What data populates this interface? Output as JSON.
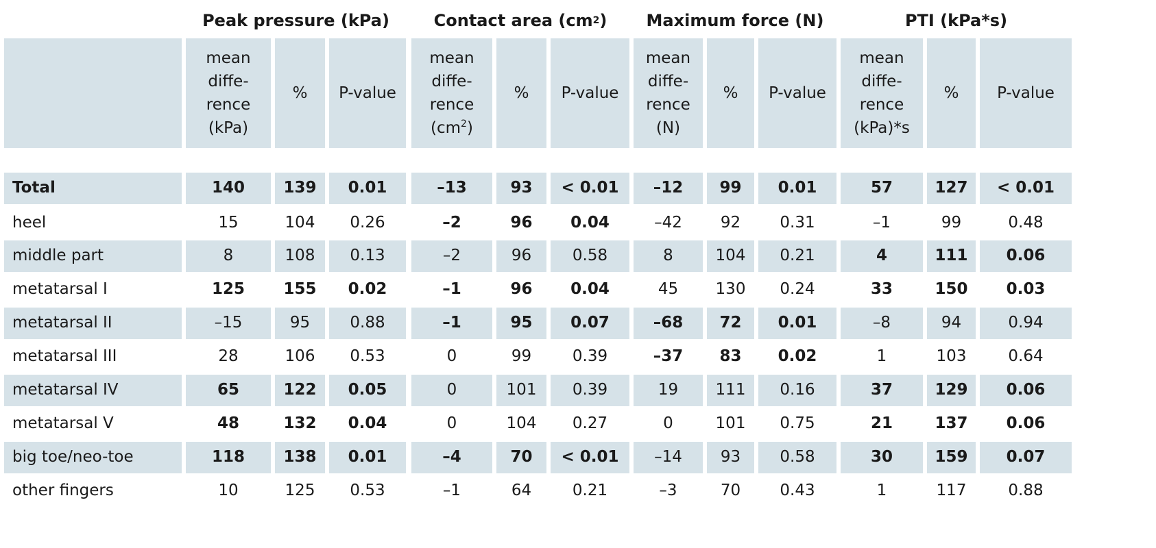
{
  "table": {
    "groups": [
      {
        "title": "Peak pressure (kPa)",
        "sup": ""
      },
      {
        "title": "Contact area (cm",
        "sup": "2",
        "after": ")"
      },
      {
        "title": "Maximum force (N)",
        "sup": ""
      },
      {
        "title": "PTI (kPa*s)",
        "sup": ""
      }
    ],
    "subheaders": [
      {
        "lines": [
          "mean",
          "diffe-",
          "rence",
          "(kPa)"
        ]
      },
      {
        "lines": [
          "%"
        ]
      },
      {
        "lines": [
          "P-value"
        ]
      },
      {
        "lines": [
          "mean",
          "diffe-",
          "rence",
          "(cm"
        ],
        "sup": "2",
        "after": ")"
      },
      {
        "lines": [
          "%"
        ]
      },
      {
        "lines": [
          "P-value"
        ]
      },
      {
        "lines": [
          "mean",
          "diffe-",
          "rence",
          "(N)"
        ]
      },
      {
        "lines": [
          "%"
        ]
      },
      {
        "lines": [
          "P-value"
        ]
      },
      {
        "lines": [
          "mean",
          "diffe-",
          "rence",
          "(kPa)*s"
        ]
      },
      {
        "lines": [
          "%"
        ]
      },
      {
        "lines": [
          "P-value"
        ]
      }
    ],
    "rows": [
      {
        "label": "Total",
        "label_bold": true,
        "values": [
          "140",
          "139",
          "0.01",
          "–13",
          "93",
          "< 0.01",
          "–12",
          "99",
          "0.01",
          "57",
          "127",
          "< 0.01"
        ],
        "bold": [
          true,
          true,
          true,
          true,
          true,
          true,
          true,
          true,
          true,
          true,
          true,
          true
        ]
      },
      {
        "label": "heel",
        "label_bold": false,
        "values": [
          "15",
          "104",
          "0.26",
          "–2",
          "96",
          "0.04",
          "–42",
          "92",
          "0.31",
          "–1",
          "99",
          "0.48"
        ],
        "bold": [
          false,
          false,
          false,
          true,
          true,
          true,
          false,
          false,
          false,
          false,
          false,
          false
        ]
      },
      {
        "label": "middle part",
        "label_bold": false,
        "values": [
          "8",
          "108",
          "0.13",
          "–2",
          "96",
          "0.58",
          "8",
          "104",
          "0.21",
          "4",
          "111",
          "0.06"
        ],
        "bold": [
          false,
          false,
          false,
          false,
          false,
          false,
          false,
          false,
          false,
          true,
          true,
          true
        ]
      },
      {
        "label": "metatarsal I",
        "label_bold": false,
        "values": [
          "125",
          "155",
          "0.02",
          "–1",
          "96",
          "0.04",
          "45",
          "130",
          "0.24",
          "33",
          "150",
          "0.03"
        ],
        "bold": [
          true,
          true,
          true,
          true,
          true,
          true,
          false,
          false,
          false,
          true,
          true,
          true
        ]
      },
      {
        "label": "metatarsal II",
        "label_bold": false,
        "values": [
          "–15",
          "95",
          "0.88",
          "–1",
          "95",
          "0.07",
          "–68",
          "72",
          "0.01",
          "–8",
          "94",
          "0.94"
        ],
        "bold": [
          false,
          false,
          false,
          true,
          true,
          true,
          true,
          true,
          true,
          false,
          false,
          false
        ]
      },
      {
        "label": "metatarsal III",
        "label_bold": false,
        "values": [
          "28",
          "106",
          "0.53",
          "0",
          "99",
          "0.39",
          "–37",
          "83",
          "0.02",
          "1",
          "103",
          "0.64"
        ],
        "bold": [
          false,
          false,
          false,
          false,
          false,
          false,
          true,
          true,
          true,
          false,
          false,
          false
        ]
      },
      {
        "label": "metatarsal IV",
        "label_bold": false,
        "values": [
          "65",
          "122",
          "0.05",
          "0",
          "101",
          "0.39",
          "19",
          "111",
          "0.16",
          "37",
          "129",
          "0.06"
        ],
        "bold": [
          true,
          true,
          true,
          false,
          false,
          false,
          false,
          false,
          false,
          true,
          true,
          true
        ]
      },
      {
        "label": "metatarsal V",
        "label_bold": false,
        "values": [
          "48",
          "132",
          "0.04",
          "0",
          "104",
          "0.27",
          "0",
          "101",
          "0.75",
          "21",
          "137",
          "0.06"
        ],
        "bold": [
          true,
          true,
          true,
          false,
          false,
          false,
          false,
          false,
          false,
          true,
          true,
          true
        ]
      },
      {
        "label": "big toe/neo-toe",
        "label_bold": false,
        "values": [
          "118",
          "138",
          "0.01",
          "–4",
          "70",
          "< 0.01",
          "–14",
          "93",
          "0.58",
          "30",
          "159",
          "0.07"
        ],
        "bold": [
          true,
          true,
          true,
          true,
          true,
          true,
          false,
          false,
          false,
          true,
          true,
          true
        ]
      },
      {
        "label": "other fingers",
        "label_bold": false,
        "values": [
          "10",
          "125",
          "0.53",
          "–1",
          "64",
          "0.21",
          "–3",
          "70",
          "0.43",
          "1",
          "117",
          "0.88"
        ],
        "bold": [
          false,
          false,
          false,
          false,
          false,
          false,
          false,
          false,
          false,
          false,
          false,
          false
        ]
      }
    ],
    "colors": {
      "shade": "#d6e2e8",
      "text": "#1a1a1a"
    }
  }
}
